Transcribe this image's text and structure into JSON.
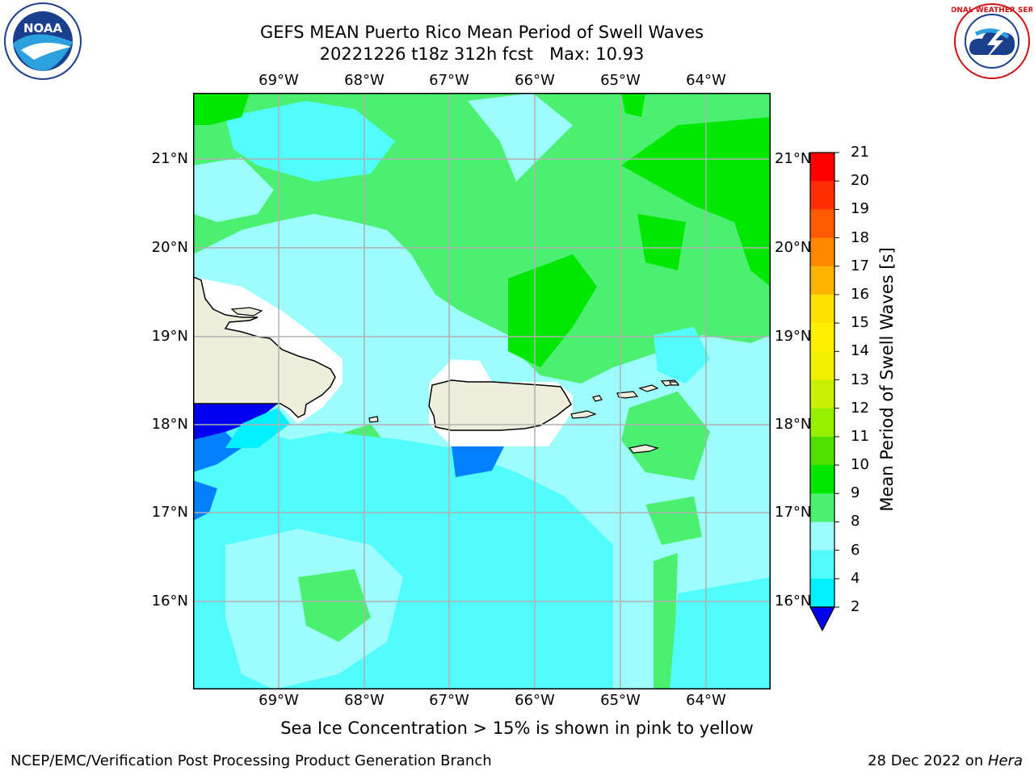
{
  "header": {
    "title_line1": "GEFS MEAN Puerto Rico Mean Period of Swell Waves",
    "title_line2": "20221226 t18z 312h fcst   Max: 10.93"
  },
  "logos": {
    "left_text": "NOAA",
    "left_ring_text": "NATIONAL OCEANIC AND ATMOSPHERIC ADMINISTRATION · U.S. DEPARTMENT OF COMMERCE",
    "right_ring_text": "NATIONAL WEATHER SERVICE"
  },
  "axes": {
    "lon_labels": [
      "69°W",
      "68°W",
      "67°W",
      "66°W",
      "65°W",
      "64°W"
    ],
    "lat_labels": [
      "21°N",
      "20°N",
      "19°N",
      "18°N",
      "17°N",
      "16°N"
    ]
  },
  "colorbar": {
    "title": "Mean Period of Swell Waves [s]",
    "ticks": [
      "21",
      "20",
      "19",
      "18",
      "17",
      "16",
      "15",
      "14",
      "13",
      "12",
      "11",
      "10",
      "9",
      "8",
      "6",
      "4",
      "2"
    ],
    "colors": [
      "#ff0000",
      "#ff2d00",
      "#ff5a00",
      "#ff8700",
      "#ffb400",
      "#ffe100",
      "#fff000",
      "#f0f000",
      "#c8f000",
      "#96f000",
      "#50e000",
      "#00e800",
      "#4cf070",
      "#9dfcfc",
      "#50fcfc",
      "#00f0ff",
      "#0080ff",
      "#0000f0"
    ]
  },
  "footer": {
    "caption": "Sea Ice Concentration > 15% is shown in pink to yellow",
    "left": "NCEP/EMC/Verification Post Processing Product Generation Branch",
    "right_prefix": "28 Dec 2022 on ",
    "right_machine": "Hera"
  },
  "map_colors": {
    "green_dark": "#00e800",
    "green": "#4cf070",
    "cyan_light": "#9dfcfc",
    "cyan": "#50fcfc",
    "cyan_bright": "#00f0ff",
    "blue": "#0080ff",
    "blue_dark": "#0000f0",
    "land": "#eeeedc",
    "grid": "#b0b0b0"
  }
}
